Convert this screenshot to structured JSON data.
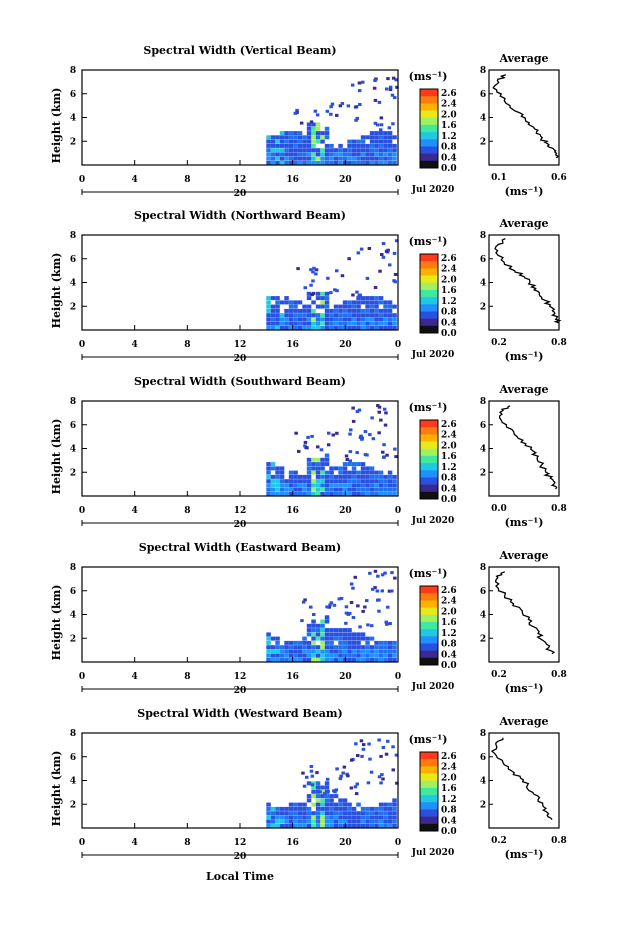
{
  "colorbar_unit": "(ms⁻¹)",
  "colorbar_ticks": [
    "2.6",
    "2.4",
    "2.0",
    "1.6",
    "1.2",
    "0.8",
    "0.4",
    "0.0"
  ],
  "colorbar_colors": [
    "#ff3a1a",
    "#ff7a10",
    "#ffb000",
    "#e8e81a",
    "#a0f060",
    "#40e8a0",
    "#20c8e0",
    "#2090ff",
    "#2a50e0",
    "#3a2a90",
    "#101010"
  ],
  "height_label": "Height (km)",
  "x_ticks": [
    "0",
    "4",
    "8",
    "12",
    "16",
    "20",
    "0"
  ],
  "x_day": "20",
  "date_label": "Jul 2020",
  "xlabel_bottom": "Local Time",
  "avg_title": "Average",
  "avg_unit": "(ms⁻¹)",
  "chart_data": [
    {
      "type": "heatmap",
      "title": "Spectral Width (Vertical Beam)",
      "ylabel": "Height (km)",
      "ylim": [
        0,
        8
      ],
      "y_ticks": [
        "8",
        "6",
        "4",
        "2"
      ],
      "xlabel": "",
      "x_range_hours": [
        0,
        24
      ],
      "data_start_hour": 14,
      "profile": {
        "title": "Average",
        "xlabel": "(ms⁻¹)",
        "x_ticks": [
          "0.1",
          "0.6"
        ],
        "xlim": [
          0.1,
          0.6
        ],
        "ylim": [
          0,
          8
        ],
        "y_ticks": [
          "8",
          "6",
          "4",
          "2"
        ],
        "points": [
          [
            0.22,
            7.6
          ],
          [
            0.16,
            7.1
          ],
          [
            0.13,
            6.5
          ],
          [
            0.18,
            5.8
          ],
          [
            0.25,
            5.0
          ],
          [
            0.32,
            4.4
          ],
          [
            0.36,
            3.8
          ],
          [
            0.4,
            3.3
          ],
          [
            0.44,
            2.8
          ],
          [
            0.48,
            2.3
          ],
          [
            0.5,
            1.9
          ],
          [
            0.53,
            1.5
          ],
          [
            0.57,
            1.1
          ],
          [
            0.58,
            0.6
          ]
        ]
      }
    },
    {
      "type": "heatmap",
      "title": "Spectral Width (Northward Beam)",
      "ylabel": "Height (km)",
      "ylim": [
        0,
        8
      ],
      "y_ticks": [
        "8",
        "6",
        "4",
        "2"
      ],
      "xlabel": "",
      "x_range_hours": [
        0,
        24
      ],
      "data_start_hour": 14,
      "profile": {
        "title": "Average",
        "xlabel": "(ms⁻¹)",
        "x_ticks": [
          "0.2",
          "0.8"
        ],
        "xlim": [
          0.2,
          0.8
        ],
        "ylim": [
          0,
          8
        ],
        "y_ticks": [
          "8",
          "6",
          "4",
          "2"
        ],
        "points": [
          [
            0.34,
            7.7
          ],
          [
            0.28,
            7.2
          ],
          [
            0.26,
            6.5
          ],
          [
            0.33,
            5.7
          ],
          [
            0.42,
            5.0
          ],
          [
            0.5,
            4.5
          ],
          [
            0.55,
            4.0
          ],
          [
            0.6,
            3.5
          ],
          [
            0.63,
            3.0
          ],
          [
            0.68,
            2.5
          ],
          [
            0.72,
            2.0
          ],
          [
            0.76,
            1.5
          ],
          [
            0.78,
            1.0
          ],
          [
            0.8,
            0.6
          ]
        ]
      }
    },
    {
      "type": "heatmap",
      "title": "Spectral Width (Southward Beam)",
      "ylabel": "Height (km)",
      "ylim": [
        0,
        8
      ],
      "y_ticks": [
        "8",
        "6",
        "4",
        "2"
      ],
      "xlabel": "",
      "x_range_hours": [
        0,
        24
      ],
      "data_start_hour": 14,
      "profile": {
        "title": "Average",
        "xlabel": "(ms⁻¹)",
        "x_ticks": [
          "0.0",
          "0.8"
        ],
        "xlim": [
          0.0,
          0.8
        ],
        "ylim": [
          0,
          8
        ],
        "y_ticks": [
          "8",
          "6",
          "4",
          "2"
        ],
        "points": [
          [
            0.24,
            7.6
          ],
          [
            0.16,
            7.2
          ],
          [
            0.12,
            6.6
          ],
          [
            0.2,
            5.8
          ],
          [
            0.32,
            5.0
          ],
          [
            0.42,
            4.4
          ],
          [
            0.5,
            3.8
          ],
          [
            0.55,
            3.2
          ],
          [
            0.6,
            2.6
          ],
          [
            0.65,
            2.0
          ],
          [
            0.7,
            1.5
          ],
          [
            0.74,
            1.0
          ],
          [
            0.76,
            0.6
          ]
        ]
      }
    },
    {
      "type": "heatmap",
      "title": "Spectral Width (Eastward Beam)",
      "ylabel": "Height (km)",
      "ylim": [
        0,
        8
      ],
      "y_ticks": [
        "8",
        "6",
        "4",
        "2"
      ],
      "xlabel": "",
      "x_range_hours": [
        0,
        24
      ],
      "data_start_hour": 14,
      "profile": {
        "title": "Average",
        "xlabel": "(ms⁻¹)",
        "x_ticks": [
          "0.2",
          "0.8"
        ],
        "xlim": [
          0.1,
          0.9
        ],
        "ylim": [
          0,
          8
        ],
        "y_ticks": [
          "8",
          "6",
          "4",
          "2"
        ],
        "points": [
          [
            0.28,
            7.6
          ],
          [
            0.2,
            7.1
          ],
          [
            0.18,
            6.4
          ],
          [
            0.28,
            5.6
          ],
          [
            0.38,
            4.9
          ],
          [
            0.48,
            4.3
          ],
          [
            0.55,
            3.6
          ],
          [
            0.6,
            3.0
          ],
          [
            0.66,
            2.4
          ],
          [
            0.72,
            1.8
          ],
          [
            0.78,
            1.2
          ],
          [
            0.82,
            0.7
          ]
        ]
      }
    },
    {
      "type": "heatmap",
      "title": "Spectral Width (Westward Beam)",
      "ylabel": "Height (km)",
      "ylim": [
        0,
        8
      ],
      "y_ticks": [
        "8",
        "6",
        "4",
        "2"
      ],
      "xlabel": "Local Time",
      "x_range_hours": [
        0,
        24
      ],
      "data_start_hour": 14,
      "profile": {
        "title": "Average",
        "xlabel": "(ms⁻¹)",
        "x_ticks": [
          "0.2",
          "0.8"
        ],
        "xlim": [
          0.1,
          0.9
        ],
        "ylim": [
          0,
          8
        ],
        "y_ticks": [
          "8",
          "6",
          "4",
          "2"
        ],
        "points": [
          [
            0.26,
            7.6
          ],
          [
            0.18,
            7.0
          ],
          [
            0.16,
            6.3
          ],
          [
            0.26,
            5.5
          ],
          [
            0.36,
            4.8
          ],
          [
            0.46,
            4.2
          ],
          [
            0.54,
            3.6
          ],
          [
            0.6,
            3.0
          ],
          [
            0.66,
            2.4
          ],
          [
            0.72,
            1.8
          ],
          [
            0.78,
            1.2
          ],
          [
            0.82,
            0.7
          ]
        ]
      }
    }
  ]
}
